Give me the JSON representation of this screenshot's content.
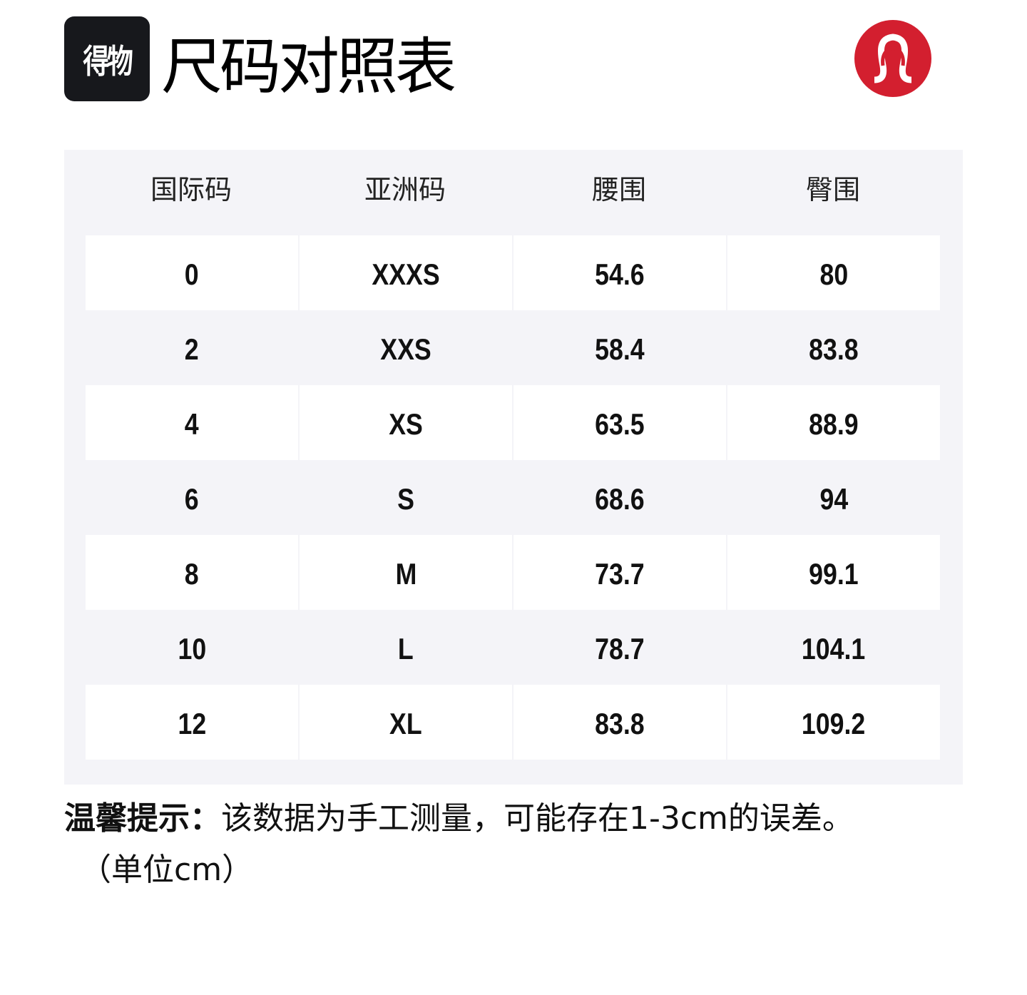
{
  "header": {
    "logo_text": "得物",
    "title": "尺码对照表",
    "brand_logo": "lululemon-logo",
    "brand_color": "#d31f2f"
  },
  "table": {
    "columns": [
      "国际码",
      "亚洲码",
      "腰围",
      "臀围"
    ],
    "rows": [
      [
        "0",
        "XXXS",
        "54.6",
        "80"
      ],
      [
        "2",
        "XXS",
        "58.4",
        "83.8"
      ],
      [
        "4",
        "XS",
        "63.5",
        "88.9"
      ],
      [
        "6",
        "S",
        "68.6",
        "94"
      ],
      [
        "8",
        "M",
        "73.7",
        "99.1"
      ],
      [
        "10",
        "L",
        "78.7",
        "104.1"
      ],
      [
        "12",
        "XL",
        "83.8",
        "109.2"
      ]
    ]
  },
  "note": {
    "label": "温馨提示：",
    "text": "该数据为手工测量，可能存在1-3cm的误差。",
    "unit": "（单位cm）"
  }
}
